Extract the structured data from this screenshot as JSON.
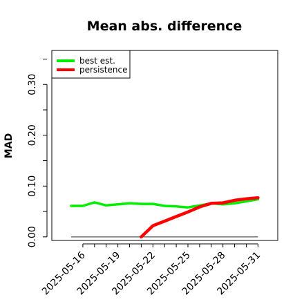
{
  "chart_data": {
    "type": "line",
    "title": "Mean abs. difference",
    "xlabel": "",
    "ylabel": "MAD",
    "x": [
      "2025-05-15",
      "2025-05-16",
      "2025-05-17",
      "2025-05-18",
      "2025-05-19",
      "2025-05-20",
      "2025-05-21",
      "2025-05-22",
      "2025-05-23",
      "2025-05-24",
      "2025-05-25",
      "2025-05-26",
      "2025-05-27",
      "2025-05-28",
      "2025-05-29",
      "2025-05-30",
      "2025-05-31"
    ],
    "x_ticks": [
      "2025-05-16",
      "2025-05-19",
      "2025-05-22",
      "2025-05-25",
      "2025-05-28",
      "2025-05-31"
    ],
    "ylim": [
      -0.007,
      0.367
    ],
    "y_ticks": [
      0.0,
      0.1,
      0.2,
      0.3
    ],
    "y_tick_labels": [
      "0.00",
      "0.10",
      "0.20",
      "0.30"
    ],
    "reference_line": 0,
    "grid": false,
    "legend_position": "top-left",
    "series": [
      {
        "name": "best est.",
        "color": "#00ee00",
        "values": [
          0.061,
          0.061,
          0.068,
          0.062,
          0.064,
          0.066,
          0.065,
          0.065,
          0.061,
          0.06,
          0.058,
          0.062,
          0.066,
          0.064,
          0.066,
          0.07,
          0.074
        ]
      },
      {
        "name": "persistence",
        "color": "#ff0000",
        "values": [
          null,
          null,
          null,
          null,
          null,
          null,
          0.0,
          0.022,
          0.031,
          0.04,
          0.049,
          0.059,
          0.066,
          0.067,
          0.072,
          0.075,
          0.077
        ]
      }
    ]
  }
}
